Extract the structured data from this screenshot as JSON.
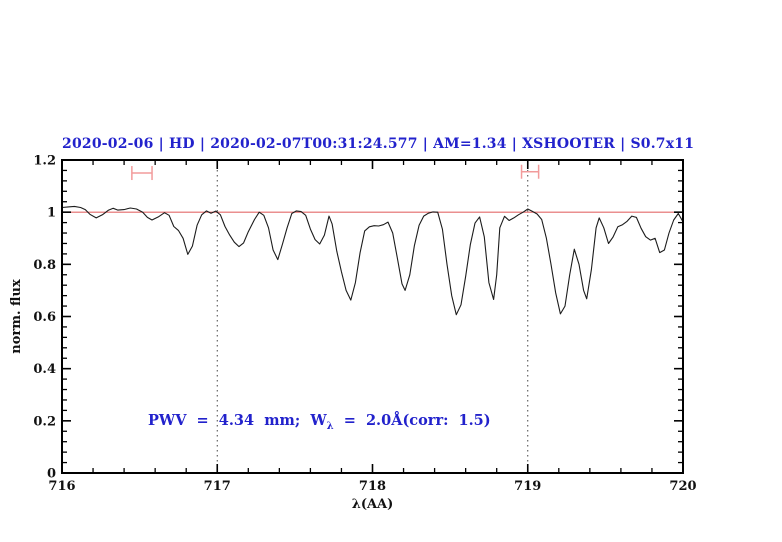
{
  "colors": {
    "title_blue": "#2222cc",
    "annotation_blue": "#2222cc",
    "continuum_red": "#e46a6a",
    "marker_red": "#f29b9b",
    "spectrum_black": "#1c1c1c",
    "frame_black": "#000000",
    "dotted_gray": "#444444",
    "background": "#ffffff"
  },
  "chart_data": {
    "type": "line",
    "title": "2020-02-06 | HD | 2020-02-07T00:31:24.577 | AM=1.34 | XSHOOTER | S0.7x11",
    "xlabel": "λ(AA)",
    "ylabel": "norm. flux",
    "xlim": [
      716,
      720
    ],
    "ylim": [
      0,
      1.2
    ],
    "xticks": [
      716,
      717,
      718,
      719,
      720
    ],
    "xtick_labels": [
      "716",
      "717",
      "718",
      "719",
      "720"
    ],
    "x_minor_step": 0.2,
    "yticks": [
      0,
      0.2,
      0.4,
      0.6,
      0.8,
      1,
      1.2
    ],
    "ytick_labels": [
      "0",
      "0.2",
      "0.4",
      "0.6",
      "0.8",
      "1",
      "1.2"
    ],
    "y_minor_step": 0.04,
    "grid": "off",
    "legend": "none",
    "dotted_vlines": [
      717,
      719
    ],
    "continuum_level": 1.0,
    "range_markers": [
      {
        "x1": 716.45,
        "x2": 716.58,
        "y": 1.15
      },
      {
        "x1": 718.96,
        "x2": 719.07,
        "y": 1.155
      }
    ],
    "annotation": {
      "prefix": "PWV  =  4.34  mm;  W",
      "sub": "λ",
      "suffix": "  =  2.0Å(corr:  1.5)"
    },
    "series": [
      {
        "name": "normalized telluric spectrum",
        "x": [
          716.0,
          716.04,
          716.08,
          716.12,
          716.15,
          716.18,
          716.22,
          716.26,
          716.3,
          716.33,
          716.36,
          716.4,
          716.44,
          716.48,
          716.52,
          716.55,
          716.58,
          716.62,
          716.66,
          716.69,
          716.72,
          716.75,
          716.78,
          716.81,
          716.84,
          716.87,
          716.9,
          716.93,
          716.96,
          716.99,
          717.02,
          717.05,
          717.08,
          717.11,
          717.14,
          717.17,
          717.2,
          717.24,
          717.27,
          717.3,
          717.33,
          717.36,
          717.39,
          717.42,
          717.45,
          717.48,
          717.51,
          717.54,
          717.57,
          717.6,
          717.63,
          717.66,
          717.69,
          717.72,
          717.74,
          717.77,
          717.8,
          717.83,
          717.86,
          717.89,
          717.92,
          717.95,
          717.98,
          718.01,
          718.04,
          718.07,
          718.1,
          718.13,
          718.16,
          718.19,
          718.21,
          718.24,
          718.27,
          718.3,
          718.33,
          718.36,
          718.39,
          718.42,
          718.45,
          718.48,
          718.51,
          718.54,
          718.57,
          718.6,
          718.63,
          718.66,
          718.69,
          718.72,
          718.75,
          718.78,
          718.8,
          718.82,
          718.85,
          718.88,
          718.91,
          718.94,
          718.97,
          719.0,
          719.03,
          719.06,
          719.09,
          719.12,
          719.15,
          719.18,
          719.21,
          719.24,
          719.27,
          719.3,
          719.33,
          719.36,
          719.38,
          719.41,
          719.44,
          719.46,
          719.49,
          719.52,
          719.55,
          719.58,
          719.61,
          719.64,
          719.67,
          719.7,
          719.73,
          719.76,
          719.79,
          719.82,
          719.85,
          719.88,
          719.91,
          719.94,
          719.97,
          720.0
        ],
        "y": [
          1.018,
          1.02,
          1.022,
          1.018,
          1.01,
          0.992,
          0.978,
          0.99,
          1.008,
          1.015,
          1.008,
          1.01,
          1.016,
          1.012,
          1.0,
          0.98,
          0.97,
          0.982,
          0.998,
          0.988,
          0.945,
          0.93,
          0.9,
          0.838,
          0.87,
          0.95,
          0.99,
          1.005,
          0.996,
          1.004,
          0.99,
          0.945,
          0.912,
          0.885,
          0.868,
          0.882,
          0.925,
          0.972,
          1.0,
          0.988,
          0.94,
          0.855,
          0.818,
          0.878,
          0.94,
          0.995,
          1.005,
          1.002,
          0.988,
          0.935,
          0.895,
          0.878,
          0.912,
          0.985,
          0.955,
          0.85,
          0.772,
          0.7,
          0.663,
          0.73,
          0.845,
          0.928,
          0.944,
          0.948,
          0.947,
          0.952,
          0.962,
          0.92,
          0.825,
          0.725,
          0.7,
          0.76,
          0.872,
          0.95,
          0.985,
          0.996,
          1.001,
          1.0,
          0.935,
          0.8,
          0.68,
          0.607,
          0.645,
          0.755,
          0.875,
          0.958,
          0.982,
          0.905,
          0.73,
          0.665,
          0.76,
          0.94,
          0.984,
          0.968,
          0.978,
          0.99,
          1.0,
          1.012,
          1.003,
          0.993,
          0.972,
          0.9,
          0.8,
          0.69,
          0.61,
          0.64,
          0.76,
          0.858,
          0.8,
          0.7,
          0.668,
          0.78,
          0.94,
          0.978,
          0.94,
          0.88,
          0.905,
          0.944,
          0.952,
          0.965,
          0.985,
          0.98,
          0.938,
          0.906,
          0.893,
          0.9,
          0.845,
          0.855,
          0.92,
          0.97,
          0.995,
          0.963
        ]
      }
    ]
  }
}
